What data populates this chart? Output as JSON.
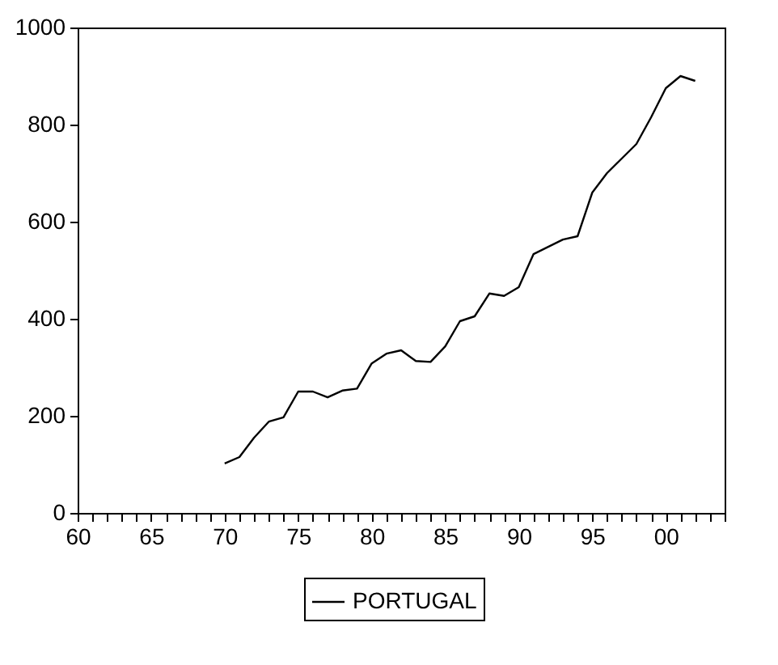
{
  "chart_data": {
    "type": "line",
    "x": [
      1970,
      1971,
      1972,
      1973,
      1974,
      1975,
      1976,
      1977,
      1978,
      1979,
      1980,
      1981,
      1982,
      1983,
      1984,
      1985,
      1986,
      1987,
      1988,
      1989,
      1990,
      1991,
      1992,
      1993,
      1994,
      1995,
      1996,
      1997,
      1998,
      1999,
      2000,
      2001,
      2002
    ],
    "series": [
      {
        "name": "PORTUGAL",
        "color": "#000000",
        "values": [
          102,
          115,
          155,
          188,
          197,
          250,
          250,
          238,
          252,
          256,
          308,
          328,
          335,
          313,
          311,
          343,
          395,
          405,
          452,
          447,
          465,
          533,
          548,
          563,
          570,
          660,
          700,
          730,
          760,
          815,
          875,
          900,
          890
        ]
      }
    ],
    "xlim": [
      1960,
      2004
    ],
    "xticks": [
      {
        "value": 1960,
        "label": "60"
      },
      {
        "value": 1961,
        "label": null
      },
      {
        "value": 1962,
        "label": null
      },
      {
        "value": 1963,
        "label": null
      },
      {
        "value": 1964,
        "label": null
      },
      {
        "value": 1965,
        "label": "65"
      },
      {
        "value": 1966,
        "label": null
      },
      {
        "value": 1967,
        "label": null
      },
      {
        "value": 1968,
        "label": null
      },
      {
        "value": 1969,
        "label": null
      },
      {
        "value": 1970,
        "label": "70"
      },
      {
        "value": 1971,
        "label": null
      },
      {
        "value": 1972,
        "label": null
      },
      {
        "value": 1973,
        "label": null
      },
      {
        "value": 1974,
        "label": null
      },
      {
        "value": 1975,
        "label": "75"
      },
      {
        "value": 1976,
        "label": null
      },
      {
        "value": 1977,
        "label": null
      },
      {
        "value": 1978,
        "label": null
      },
      {
        "value": 1979,
        "label": null
      },
      {
        "value": 1980,
        "label": "80"
      },
      {
        "value": 1981,
        "label": null
      },
      {
        "value": 1982,
        "label": null
      },
      {
        "value": 1983,
        "label": null
      },
      {
        "value": 1984,
        "label": null
      },
      {
        "value": 1985,
        "label": "85"
      },
      {
        "value": 1986,
        "label": null
      },
      {
        "value": 1987,
        "label": null
      },
      {
        "value": 1988,
        "label": null
      },
      {
        "value": 1989,
        "label": null
      },
      {
        "value": 1990,
        "label": "90"
      },
      {
        "value": 1991,
        "label": null
      },
      {
        "value": 1992,
        "label": null
      },
      {
        "value": 1993,
        "label": null
      },
      {
        "value": 1994,
        "label": null
      },
      {
        "value": 1995,
        "label": "95"
      },
      {
        "value": 1996,
        "label": null
      },
      {
        "value": 1997,
        "label": null
      },
      {
        "value": 1998,
        "label": null
      },
      {
        "value": 1999,
        "label": null
      },
      {
        "value": 2000,
        "label": "00"
      },
      {
        "value": 2001,
        "label": null
      },
      {
        "value": 2002,
        "label": null
      },
      {
        "value": 2003,
        "label": null
      },
      {
        "value": 2004,
        "label": null
      }
    ],
    "ylim": [
      0,
      1000
    ],
    "yticks": [
      0,
      200,
      400,
      600,
      800,
      1000
    ],
    "legend": "bottom",
    "line_style": "solid"
  }
}
